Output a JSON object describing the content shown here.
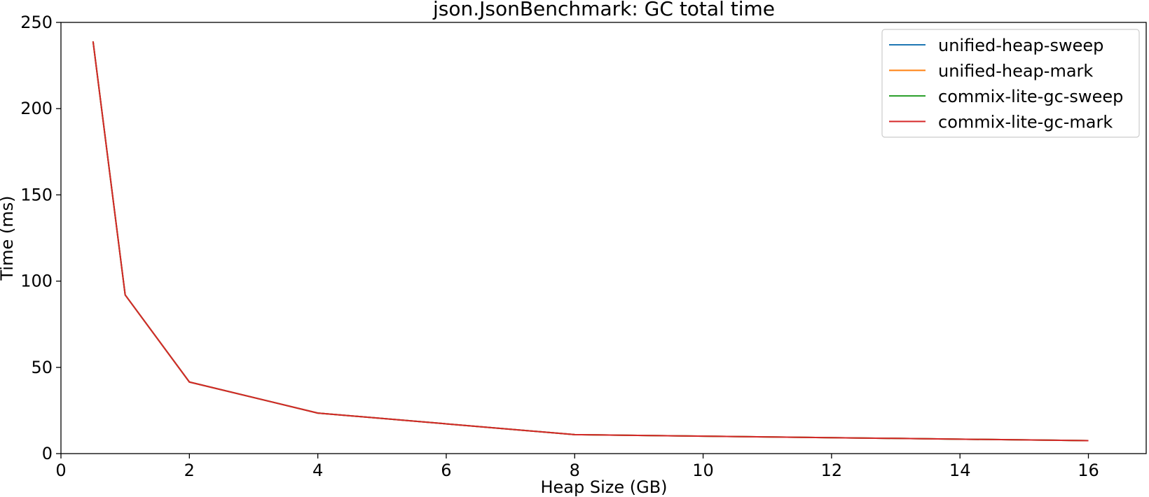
{
  "chart_data": {
    "type": "line",
    "title": "json.JsonBenchmark: GC total time",
    "xlabel": "Heap Size (GB)",
    "ylabel": "Time (ms)",
    "xlim": [
      0,
      16.9
    ],
    "ylim": [
      0,
      250
    ],
    "xticks": [
      0,
      2,
      4,
      6,
      8,
      10,
      12,
      14,
      16
    ],
    "yticks": [
      0,
      50,
      100,
      150,
      200,
      250
    ],
    "grid": false,
    "legend_position": "top-right",
    "x": [
      0.5,
      1,
      2,
      4,
      8,
      16
    ],
    "series": [
      {
        "name": "unified-heap-sweep",
        "color": "#1f77b4",
        "values": [
          239,
          92,
          41.5,
          23.5,
          11,
          7.5
        ]
      },
      {
        "name": "unified-heap-mark",
        "color": "#ff7f0e",
        "values": [
          239,
          92,
          41.5,
          23.5,
          11,
          7.5
        ]
      },
      {
        "name": "commix-lite-gc-sweep",
        "color": "#2ca02c",
        "values": [
          239,
          92,
          41.5,
          23.5,
          11,
          7.5
        ]
      },
      {
        "name": "commix-lite-gc-mark",
        "color": "#d62728",
        "values": [
          239,
          92,
          41.5,
          23.5,
          11,
          7.5
        ]
      }
    ]
  }
}
